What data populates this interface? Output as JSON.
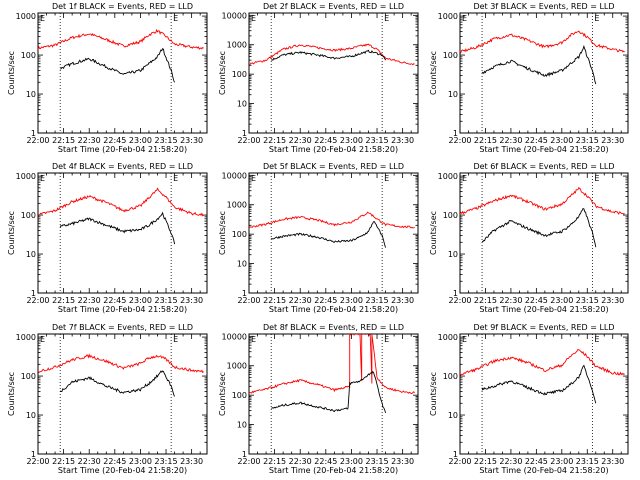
{
  "colors": {
    "background": "#ffffff",
    "axis": "#000000",
    "events_line": "#000000",
    "lld_line": "#ff0000"
  },
  "panels": [
    {
      "title": "Det 1f BLACK = Events, RED = LLD",
      "ylabel": "Counts/sec",
      "xlabel": "Start Time (20-Feb-04 21:58:20)",
      "ytick_labels": [
        "1",
        "10",
        "100",
        "1000"
      ],
      "xtick_labels": [
        "22:00",
        "22:15",
        "22:30",
        "22:45",
        "23:00",
        "23:15",
        "23:30"
      ],
      "markers": [
        "E",
        "E"
      ]
    },
    {
      "title": "Det 2f BLACK = Events, RED = LLD",
      "ylabel": "Counts/sec",
      "xlabel": "Start Time (20-Feb-04 21:58:20)",
      "ytick_labels": [
        "1",
        "10",
        "100",
        "1000",
        "10000"
      ],
      "xtick_labels": [
        "22:00",
        "22:15",
        "22:30",
        "22:45",
        "23:00",
        "23:15",
        "23:30"
      ],
      "markers": [
        "E",
        "E"
      ]
    },
    {
      "title": "Det 3f BLACK = Events, RED = LLD",
      "ylabel": "Counts/sec",
      "xlabel": "Start Time (20-Feb-04 21:58:20)",
      "ytick_labels": [
        "1",
        "10",
        "100",
        "1000"
      ],
      "xtick_labels": [
        "22:00",
        "22:15",
        "22:30",
        "22:45",
        "23:00",
        "23:15",
        "23:30"
      ],
      "markers": [
        "E",
        "E"
      ]
    },
    {
      "title": "Det 4f BLACK = Events, RED = LLD",
      "ylabel": "Counts/sec",
      "xlabel": "Start Time (20-Feb-04 21:58:20)",
      "ytick_labels": [
        "1",
        "10",
        "100",
        "1000"
      ],
      "xtick_labels": [
        "22:00",
        "22:15",
        "22:30",
        "22:45",
        "23:00",
        "23:15",
        "23:30"
      ],
      "markers": [
        "E",
        "E"
      ]
    },
    {
      "title": "Det 5f BLACK = Events, RED = LLD",
      "ylabel": "Counts/sec",
      "xlabel": "Start Time (20-Feb-04 21:58:20)",
      "ytick_labels": [
        "1",
        "10",
        "100",
        "1000",
        "10000"
      ],
      "xtick_labels": [
        "22:00",
        "22:15",
        "22:30",
        "22:45",
        "23:00",
        "23:15",
        "23:30"
      ],
      "markers": [
        "E",
        "E"
      ]
    },
    {
      "title": "Det 6f BLACK = Events, RED = LLD",
      "ylabel": "Counts/sec",
      "xlabel": "Start Time (20-Feb-04 21:58:20)",
      "ytick_labels": [
        "1",
        "10",
        "100",
        "1000"
      ],
      "xtick_labels": [
        "22:00",
        "22:15",
        "22:30",
        "22:45",
        "23:00",
        "23:15",
        "23:30"
      ],
      "markers": [
        "E",
        "E"
      ]
    },
    {
      "title": "Det 7f BLACK = Events, RED = LLD",
      "ylabel": "Counts/sec",
      "xlabel": "Start Time (20-Feb-04 21:58:20)",
      "ytick_labels": [
        "1",
        "10",
        "100",
        "1000"
      ],
      "xtick_labels": [
        "22:00",
        "22:15",
        "22:30",
        "22:45",
        "23:00",
        "23:15",
        "23:30"
      ],
      "markers": [
        "E",
        "E"
      ]
    },
    {
      "title": "Det 8f BLACK = Events, RED = LLD",
      "ylabel": "Counts/sec",
      "xlabel": "Start Time (20-Feb-04 21:58:20)",
      "ytick_labels": [
        "1",
        "10",
        "100",
        "1000",
        "10000"
      ],
      "xtick_labels": [
        "22:00",
        "22:15",
        "22:30",
        "22:45",
        "23:00",
        "23:15",
        "23:30"
      ],
      "markers": [
        "E",
        "E"
      ]
    },
    {
      "title": "Det 9f BLACK = Events, RED = LLD",
      "ylabel": "Counts/sec",
      "xlabel": "Start Time (20-Feb-04 21:58:20)",
      "ytick_labels": [
        "1",
        "10",
        "100",
        "1000"
      ],
      "xtick_labels": [
        "22:00",
        "22:15",
        "22:30",
        "22:45",
        "23:00",
        "23:15",
        "23:30"
      ],
      "markers": [
        "E",
        "E"
      ]
    }
  ],
  "chart_data": [
    {
      "type": "line",
      "title": "Det 1f BLACK = Events, RED = LLD",
      "xlabel": "Start Time (20-Feb-04 21:58:20)",
      "ylabel": "Counts/sec",
      "xlim": [
        "22:00",
        "23:39"
      ],
      "ylim": [
        1,
        1200
      ],
      "log_y": true,
      "vlines": [
        "22:13",
        "23:18"
      ],
      "series": [
        {
          "name": "LLD",
          "color": "#ff0000",
          "x": [
            "22:00",
            "22:10",
            "22:20",
            "22:30",
            "22:40",
            "22:50",
            "23:00",
            "23:05",
            "23:10",
            "23:15",
            "23:20",
            "23:30",
            "23:37"
          ],
          "values": [
            150,
            180,
            280,
            350,
            250,
            170,
            220,
            330,
            420,
            300,
            190,
            160,
            150
          ]
        },
        {
          "name": "Events",
          "color": "#000000",
          "x": [
            "22:13",
            "22:20",
            "22:30",
            "22:40",
            "22:50",
            "23:00",
            "23:05",
            "23:10",
            "23:13",
            "23:18",
            "23:20"
          ],
          "values": [
            45,
            60,
            80,
            50,
            32,
            40,
            60,
            90,
            150,
            40,
            20
          ]
        }
      ]
    },
    {
      "type": "line",
      "title": "Det 2f BLACK = Events, RED = LLD",
      "xlabel": "Start Time (20-Feb-04 21:58:20)",
      "ylabel": "Counts/sec",
      "xlim": [
        "22:00",
        "23:39"
      ],
      "ylim": [
        1,
        12000
      ],
      "log_y": true,
      "vlines": [
        "22:13",
        "23:18"
      ],
      "series": [
        {
          "name": "LLD",
          "color": "#ff0000",
          "x": [
            "22:00",
            "22:10",
            "22:20",
            "22:30",
            "22:40",
            "22:50",
            "23:00",
            "23:05",
            "23:10",
            "23:15",
            "23:20",
            "23:30",
            "23:37"
          ],
          "values": [
            220,
            300,
            700,
            1000,
            800,
            650,
            750,
            900,
            1000,
            700,
            350,
            250,
            220
          ]
        },
        {
          "name": "Events",
          "color": "#000000",
          "x": [
            "22:13",
            "22:20",
            "22:30",
            "22:40",
            "22:50",
            "23:00",
            "23:05",
            "23:10",
            "23:13",
            "23:18",
            "23:20"
          ],
          "values": [
            300,
            450,
            550,
            450,
            350,
            400,
            500,
            600,
            550,
            450,
            300
          ]
        }
      ]
    },
    {
      "type": "line",
      "title": "Det 3f BLACK = Events, RED = LLD",
      "xlabel": "Start Time (20-Feb-04 21:58:20)",
      "ylabel": "Counts/sec",
      "xlim": [
        "22:00",
        "23:39"
      ],
      "ylim": [
        1,
        1200
      ],
      "log_y": true,
      "vlines": [
        "22:13",
        "23:18"
      ],
      "series": [
        {
          "name": "LLD",
          "color": "#ff0000",
          "x": [
            "22:00",
            "22:10",
            "22:20",
            "22:30",
            "22:40",
            "22:50",
            "23:00",
            "23:05",
            "23:10",
            "23:15",
            "23:20",
            "23:30",
            "23:37"
          ],
          "values": [
            120,
            160,
            260,
            330,
            240,
            160,
            210,
            320,
            420,
            290,
            180,
            140,
            120
          ]
        },
        {
          "name": "Events",
          "color": "#000000",
          "x": [
            "22:13",
            "22:20",
            "22:30",
            "22:40",
            "22:50",
            "23:00",
            "23:05",
            "23:10",
            "23:13",
            "23:18",
            "23:20"
          ],
          "values": [
            35,
            50,
            70,
            45,
            30,
            40,
            60,
            90,
            160,
            40,
            18
          ]
        }
      ]
    },
    {
      "type": "line",
      "title": "Det 4f BLACK = Events, RED = LLD",
      "xlabel": "Start Time (20-Feb-04 21:58:20)",
      "ylabel": "Counts/sec",
      "xlim": [
        "22:00",
        "23:39"
      ],
      "ylim": [
        1,
        1200
      ],
      "log_y": true,
      "vlines": [
        "22:13",
        "23:18"
      ],
      "series": [
        {
          "name": "LLD",
          "color": "#ff0000",
          "x": [
            "22:00",
            "22:10",
            "22:20",
            "22:30",
            "22:40",
            "22:50",
            "23:00",
            "23:05",
            "23:10",
            "23:15",
            "23:20",
            "23:30",
            "23:37"
          ],
          "values": [
            100,
            130,
            220,
            300,
            210,
            130,
            170,
            280,
            450,
            290,
            160,
            110,
            100
          ]
        },
        {
          "name": "Events",
          "color": "#000000",
          "x": [
            "22:13",
            "22:20",
            "22:30",
            "22:40",
            "22:50",
            "23:00",
            "23:05",
            "23:10",
            "23:13",
            "23:18",
            "23:20"
          ],
          "values": [
            50,
            60,
            80,
            55,
            38,
            42,
            55,
            80,
            110,
            35,
            18
          ]
        }
      ]
    },
    {
      "type": "line",
      "title": "Det 5f BLACK = Events, RED = LLD",
      "xlabel": "Start Time (20-Feb-04 21:58:20)",
      "ylabel": "Counts/sec",
      "xlim": [
        "22:00",
        "23:39"
      ],
      "ylim": [
        1,
        12000
      ],
      "log_y": true,
      "vlines": [
        "22:13",
        "23:18"
      ],
      "series": [
        {
          "name": "LLD",
          "color": "#ff0000",
          "x": [
            "22:00",
            "22:10",
            "22:20",
            "22:30",
            "22:40",
            "22:50",
            "23:00",
            "23:05",
            "23:10",
            "23:15",
            "23:20",
            "23:30",
            "23:37"
          ],
          "values": [
            170,
            220,
            320,
            380,
            300,
            210,
            260,
            380,
            550,
            330,
            210,
            180,
            170
          ]
        },
        {
          "name": "Events",
          "color": "#000000",
          "x": [
            "22:13",
            "22:20",
            "22:30",
            "22:40",
            "22:50",
            "23:00",
            "23:05",
            "23:10",
            "23:13",
            "23:18",
            "23:20"
          ],
          "values": [
            70,
            85,
            100,
            80,
            55,
            60,
            80,
            120,
            280,
            90,
            35
          ]
        }
      ]
    },
    {
      "type": "line",
      "title": "Det 6f BLACK = Events, RED = LLD",
      "xlabel": "Start Time (20-Feb-04 21:58:20)",
      "ylabel": "Counts/sec",
      "xlim": [
        "22:00",
        "23:39"
      ],
      "ylim": [
        1,
        1200
      ],
      "log_y": true,
      "vlines": [
        "22:13",
        "23:18"
      ],
      "series": [
        {
          "name": "LLD",
          "color": "#ff0000",
          "x": [
            "22:00",
            "22:10",
            "22:20",
            "22:30",
            "22:40",
            "22:50",
            "23:00",
            "23:05",
            "23:10",
            "23:15",
            "23:20",
            "23:30",
            "23:37"
          ],
          "values": [
            110,
            150,
            230,
            320,
            220,
            140,
            190,
            300,
            480,
            310,
            170,
            120,
            110
          ]
        },
        {
          "name": "Events",
          "color": "#000000",
          "x": [
            "22:13",
            "22:20",
            "22:30",
            "22:40",
            "22:50",
            "23:00",
            "23:05",
            "23:10",
            "23:13",
            "23:18",
            "23:20"
          ],
          "values": [
            20,
            40,
            70,
            45,
            30,
            38,
            55,
            90,
            150,
            35,
            15
          ]
        }
      ]
    },
    {
      "type": "line",
      "title": "Det 7f BLACK = Events, RED = LLD",
      "xlabel": "Start Time (20-Feb-04 21:58:20)",
      "ylabel": "Counts/sec",
      "xlim": [
        "22:00",
        "23:39"
      ],
      "ylim": [
        1,
        1200
      ],
      "log_y": true,
      "vlines": [
        "22:13",
        "23:18"
      ],
      "series": [
        {
          "name": "LLD",
          "color": "#ff0000",
          "x": [
            "22:00",
            "22:10",
            "22:20",
            "22:30",
            "22:40",
            "22:50",
            "23:00",
            "23:05",
            "23:10",
            "23:15",
            "23:20",
            "23:30",
            "23:37"
          ],
          "values": [
            130,
            170,
            260,
            330,
            240,
            160,
            210,
            290,
            330,
            270,
            170,
            140,
            130
          ]
        },
        {
          "name": "Events",
          "color": "#000000",
          "x": [
            "22:13",
            "22:20",
            "22:30",
            "22:40",
            "22:50",
            "23:00",
            "23:05",
            "23:10",
            "23:13",
            "23:18",
            "23:20"
          ],
          "values": [
            40,
            70,
            90,
            55,
            38,
            45,
            65,
            100,
            140,
            55,
            30
          ]
        }
      ]
    },
    {
      "type": "line",
      "title": "Det 8f BLACK = Events, RED = LLD",
      "xlabel": "Start Time (20-Feb-04 21:58:20)",
      "ylabel": "Counts/sec",
      "xlim": [
        "22:00",
        "23:39"
      ],
      "ylim": [
        1,
        12000
      ],
      "log_y": true,
      "vlines": [
        "22:13",
        "23:18"
      ],
      "series": [
        {
          "name": "LLD",
          "color": "#ff0000",
          "x": [
            "22:00",
            "22:10",
            "22:20",
            "22:30",
            "22:40",
            "22:50",
            "22:58",
            "22:59",
            "22:59",
            "23:05",
            "23:06",
            "23:06",
            "23:11",
            "23:12",
            "23:12",
            "23:15",
            "23:20",
            "23:30",
            "23:37"
          ],
          "values": [
            120,
            160,
            240,
            320,
            230,
            150,
            190,
            190,
            12000,
            12000,
            300,
            12000,
            12000,
            250,
            12000,
            400,
            180,
            130,
            120
          ]
        },
        {
          "name": "Events",
          "color": "#000000",
          "x": [
            "22:13",
            "22:20",
            "22:30",
            "22:40",
            "22:50",
            "22:58",
            "22:59",
            "23:05",
            "23:10",
            "23:13",
            "23:18",
            "23:20"
          ],
          "values": [
            35,
            45,
            55,
            40,
            30,
            35,
            250,
            300,
            500,
            600,
            50,
            25
          ]
        }
      ]
    },
    {
      "type": "line",
      "title": "Det 9f BLACK = Events, RED = LLD",
      "xlabel": "Start Time (20-Feb-04 21:58:20)",
      "ylabel": "Counts/sec",
      "xlim": [
        "22:00",
        "23:39"
      ],
      "ylim": [
        1,
        1200
      ],
      "log_y": true,
      "vlines": [
        "22:13",
        "23:18"
      ],
      "series": [
        {
          "name": "LLD",
          "color": "#ff0000",
          "x": [
            "22:00",
            "22:10",
            "22:20",
            "22:30",
            "22:40",
            "22:50",
            "23:00",
            "23:05",
            "23:10",
            "23:15",
            "23:20",
            "23:30",
            "23:37"
          ],
          "values": [
            110,
            150,
            240,
            300,
            220,
            140,
            190,
            320,
            470,
            320,
            180,
            120,
            110
          ]
        },
        {
          "name": "Events",
          "color": "#000000",
          "x": [
            "22:13",
            "22:20",
            "22:30",
            "22:40",
            "22:50",
            "23:00",
            "23:05",
            "23:10",
            "23:13",
            "23:18",
            "23:20"
          ],
          "values": [
            45,
            55,
            75,
            50,
            35,
            42,
            60,
            95,
            180,
            45,
            20
          ]
        }
      ]
    }
  ]
}
